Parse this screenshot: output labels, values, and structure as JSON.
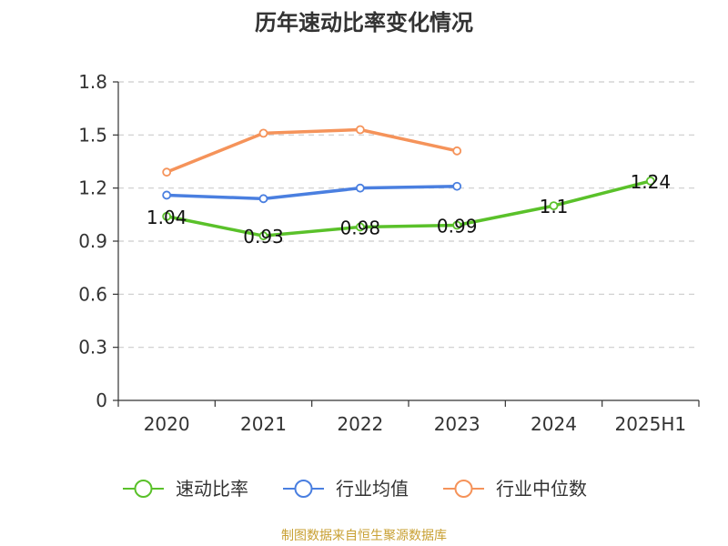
{
  "chart_data": {
    "type": "line",
    "title": "历年速动比率变化情况",
    "categories": [
      "2020",
      "2021",
      "2022",
      "2023",
      "2024",
      "2025H1"
    ],
    "yticks": [
      "0",
      "0.3",
      "0.6",
      "0.9",
      "1.2",
      "1.5",
      "1.8"
    ],
    "ylim": [
      0,
      1.8
    ],
    "grid": true,
    "legend_position": "bottom",
    "series": [
      {
        "name": "速动比率",
        "color": "#5ac12a",
        "values": [
          1.04,
          0.93,
          0.98,
          0.99,
          1.1,
          1.24
        ],
        "labels": [
          "1.04",
          "0.93",
          "0.98",
          "0.99",
          "1.1",
          "1.24"
        ]
      },
      {
        "name": "行业均值",
        "color": "#4a7fe0",
        "values": [
          1.16,
          1.14,
          1.2,
          1.21,
          null,
          null
        ]
      },
      {
        "name": "行业中位数",
        "color": "#f5935a",
        "values": [
          1.29,
          1.51,
          1.53,
          1.41,
          null,
          null
        ]
      }
    ]
  },
  "source_text": "制图数据来自恒生聚源数据库"
}
